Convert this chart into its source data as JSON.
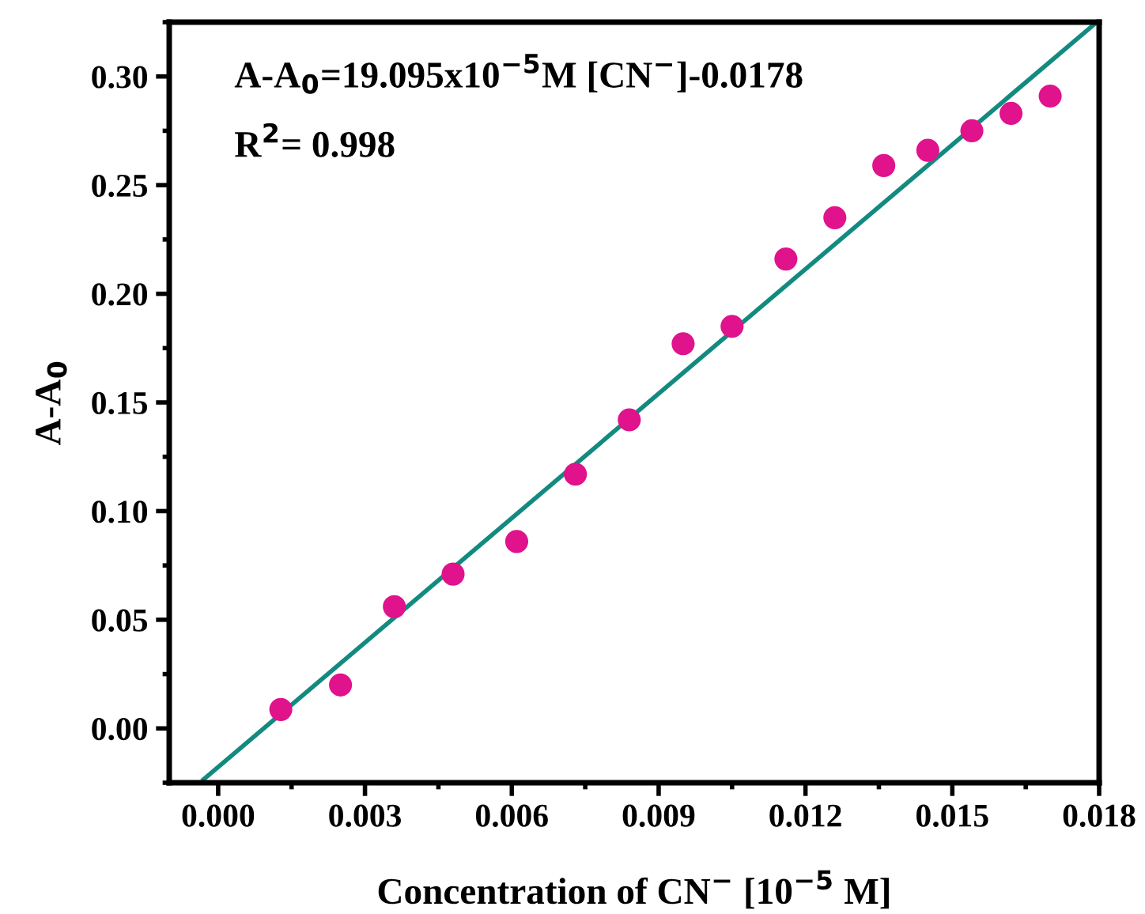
{
  "chart_data": {
    "type": "scatter",
    "xlabel": "Concentration of CN$^{−}$ [10$^{−5}$ M]",
    "ylabel": "A-A$_{0}$",
    "annotations": [
      "A-A$_{0}$=19.095x10$^{−5}$M [CN$^{−}$]-0.0178",
      "R$^{2}$= 0.998"
    ],
    "series": [
      {
        "color": "#e0128c",
        "marker": "circle",
        "x": [
          0.00128,
          0.0025,
          0.0036,
          0.0048,
          0.0061,
          0.0073,
          0.0084,
          0.0095,
          0.0105,
          0.0116,
          0.0126,
          0.0136,
          0.0145,
          0.0154,
          0.0162,
          0.017
        ],
        "values": [
          0.0087,
          0.02,
          0.056,
          0.071,
          0.086,
          0.117,
          0.142,
          0.177,
          0.185,
          0.216,
          0.235,
          0.259,
          0.266,
          0.275,
          0.283,
          0.291
        ]
      },
      {
        "type": "line",
        "color": "#138a80",
        "marker": "none",
        "line_style": "solid",
        "x": [
          -0.0003,
          0.0179
        ],
        "values": [
          -0.0235,
          0.324
        ]
      }
    ],
    "xlim": [
      -0.001,
      0.018
    ],
    "ylim": [
      -0.025,
      0.325
    ],
    "xticks": [
      {
        "value": 0,
        "label": "0.000"
      },
      {
        "value": 0.003,
        "label": "0.003"
      },
      {
        "value": 0.006,
        "label": "0.006"
      },
      {
        "value": 0.009,
        "label": "0.009"
      },
      {
        "value": 0.012,
        "label": "0.012"
      },
      {
        "value": 0.015,
        "label": "0.015"
      },
      {
        "value": 0.018,
        "label": "0.018"
      }
    ],
    "yticks": [
      {
        "value": 0,
        "label": "0.00"
      },
      {
        "value": 0.05,
        "label": "0.05"
      },
      {
        "value": 0.1,
        "label": "0.10"
      },
      {
        "value": 0.15,
        "label": "0.15"
      },
      {
        "value": 0.2,
        "label": "0.20"
      },
      {
        "value": 0.25,
        "label": "0.25"
      },
      {
        "value": 0.3,
        "label": "0.30"
      }
    ],
    "grid": false,
    "legend": false
  }
}
